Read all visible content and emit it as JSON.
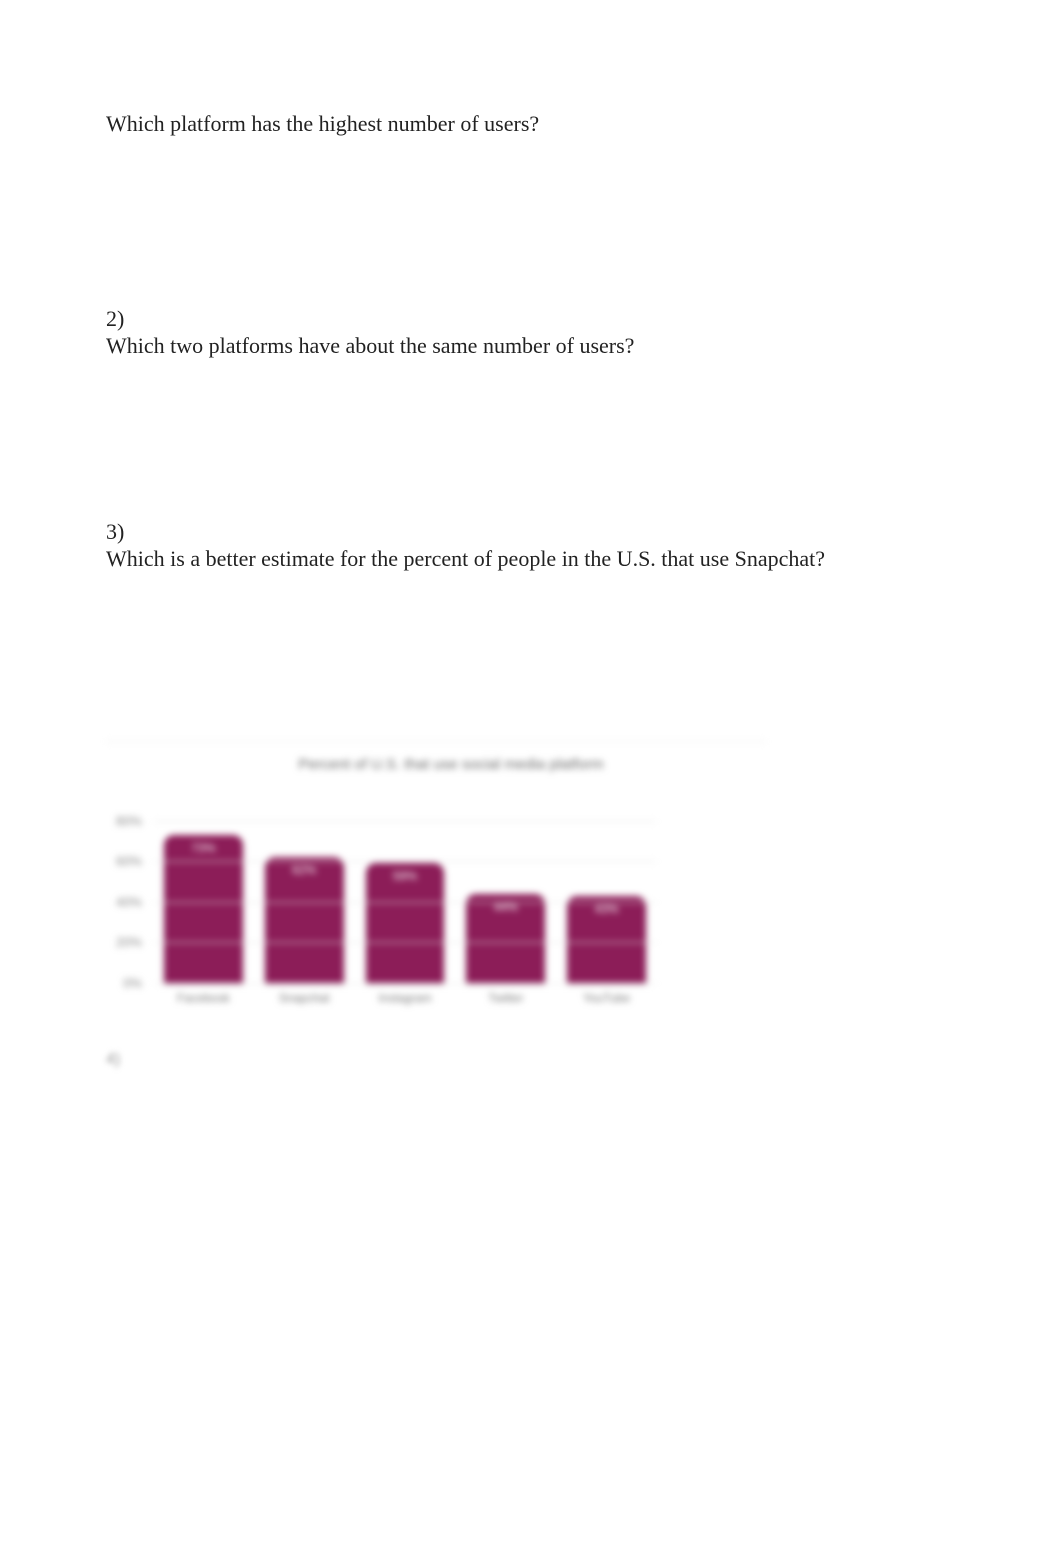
{
  "questions": {
    "q1": {
      "text": "Which platform has the highest number of users?"
    },
    "q2": {
      "num": "2)",
      "text": "Which two platforms have about the same number of users?"
    },
    "q3": {
      "num": "3)",
      "text": "Which is a better estimate for the percent of people in the U.S. that use Snapchat?"
    }
  },
  "chart": {
    "type": "bar",
    "title": "Percent of U.S. that use social media platform",
    "title_fontsize": 15,
    "title_color": "#6a6a6a",
    "background_color": "#ffffff",
    "grid_color": "#e6e6e6",
    "bar_width": 0.78,
    "ylim": [
      0,
      100
    ],
    "yticks": [
      0,
      20,
      40,
      60,
      80
    ],
    "ytick_labels": [
      "0%",
      "20%",
      "40%",
      "60%",
      "80%"
    ],
    "axis_label_color": "#888",
    "axis_label_fontsize": 13,
    "categories": [
      "Facebook",
      "Snapchat",
      "Instagram",
      "Twitter",
      "YouTube"
    ],
    "values": [
      73,
      62,
      59,
      44,
      43
    ],
    "value_labels": [
      "73%",
      "62%",
      "59%",
      "44%",
      "43%"
    ],
    "bar_colors": [
      "#8c1d58",
      "#8c1d58",
      "#8c1d58",
      "#8c1d58",
      "#8c1d58"
    ],
    "bar_radius": 10,
    "value_label_color": "#ffffff",
    "value_label_fontsize": 12,
    "x_label_color": "#777777",
    "x_label_fontsize": 12
  },
  "footer_marker": "4)"
}
